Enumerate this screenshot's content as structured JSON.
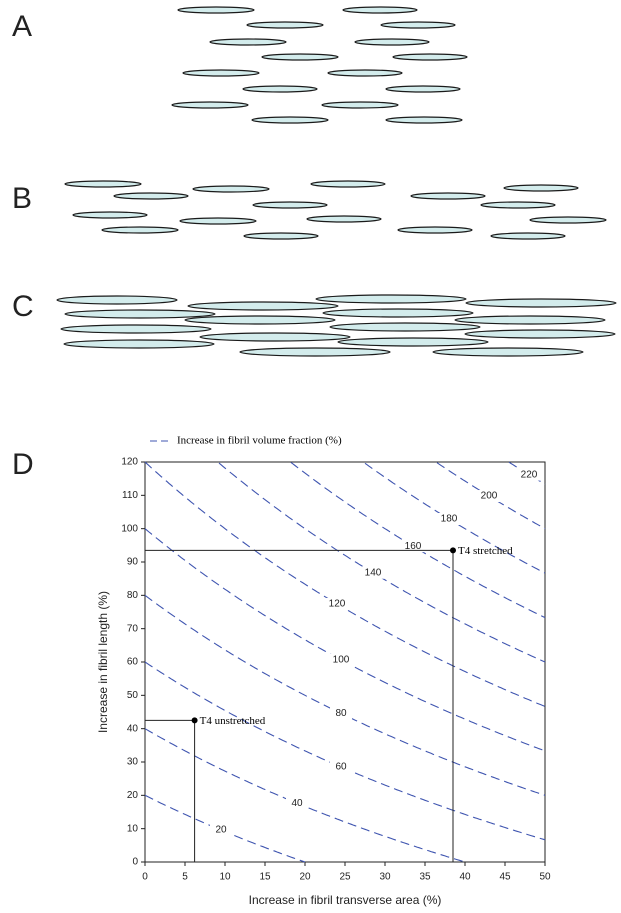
{
  "panel_labels": [
    "A",
    "B",
    "C",
    "D"
  ],
  "chart_data": {
    "type": "contour",
    "legend": "Increase in fibril volume fraction (%)",
    "xlabel": "Increase in fibril transverse area (%)",
    "ylabel": "Increase in fibril length (%)",
    "xlim": [
      0,
      50
    ],
    "xticks": [
      0,
      5,
      10,
      15,
      20,
      25,
      30,
      35,
      40,
      45,
      50
    ],
    "ylim": [
      0,
      120
    ],
    "yticks": [
      0,
      10,
      20,
      30,
      40,
      50,
      60,
      70,
      80,
      90,
      100,
      110,
      120
    ],
    "contour_levels": [
      20,
      40,
      60,
      80,
      100,
      120,
      140,
      160,
      180,
      200,
      220
    ],
    "color": "#3f55b0",
    "points": [
      {
        "label": "T4 stretched",
        "x": 38.5,
        "y": 93.5
      },
      {
        "label": "T4 unstretched",
        "x": 6.2,
        "y": 42.5
      }
    ]
  }
}
